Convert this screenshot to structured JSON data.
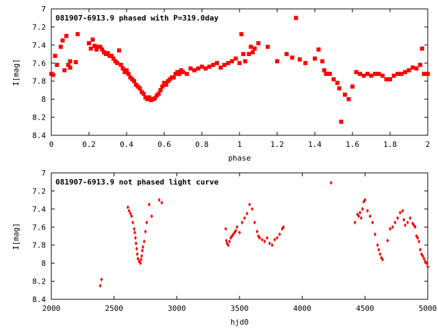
{
  "chart_data": [
    {
      "type": "scatter",
      "title": "081907-6913.9 phased with P=319.0day",
      "xlabel": "phase",
      "ylabel": "I[mag]",
      "xlim": [
        0,
        2
      ],
      "ylim": [
        8.4,
        7
      ],
      "y_inverted": true,
      "xticks": [
        0,
        0.2,
        0.4,
        0.6,
        0.8,
        1,
        1.2,
        1.4,
        1.6,
        1.8,
        2
      ],
      "xtick_labels": [
        "0",
        "0.2",
        "0.4",
        "0.6",
        "0.8",
        "1",
        "1.2",
        "1.4",
        "1.6",
        "1.8",
        "2"
      ],
      "yticks": [
        7,
        7.2,
        7.4,
        7.6,
        7.8,
        8,
        8.2,
        8.4
      ],
      "ytick_labels": [
        "7",
        "7.2",
        "7.4",
        "7.6",
        "7.8",
        "8",
        "8.2",
        "8.4"
      ],
      "marker": "filled-square",
      "color": "#ff0000",
      "series": [
        {
          "name": "phased",
          "x": [
            0.0,
            0.01,
            0.02,
            0.03,
            0.05,
            0.06,
            0.07,
            0.08,
            0.09,
            0.1,
            0.1,
            0.13,
            0.14,
            0.2,
            0.21,
            0.22,
            0.23,
            0.24,
            0.25,
            0.26,
            0.27,
            0.28,
            0.29,
            0.3,
            0.31,
            0.32,
            0.33,
            0.34,
            0.35,
            0.36,
            0.37,
            0.38,
            0.39,
            0.4,
            0.41,
            0.42,
            0.43,
            0.44,
            0.45,
            0.46,
            0.47,
            0.48,
            0.49,
            0.5,
            0.51,
            0.52,
            0.53,
            0.54,
            0.55,
            0.56,
            0.57,
            0.58,
            0.59,
            0.6,
            0.61,
            0.62,
            0.63,
            0.64,
            0.65,
            0.66,
            0.67,
            0.68,
            0.69,
            0.7,
            0.72,
            0.74,
            0.76,
            0.78,
            0.8,
            0.82,
            0.84,
            0.86,
            0.88,
            0.9,
            0.92,
            0.94,
            0.96,
            0.98,
            1.0,
            1.01,
            1.02,
            1.03,
            1.05,
            1.06,
            1.07,
            1.08,
            1.1,
            1.15,
            1.2,
            1.25,
            1.28,
            1.3,
            1.32,
            1.35,
            1.4,
            1.42,
            1.44,
            1.45,
            1.46,
            1.48,
            1.5,
            1.52,
            1.53,
            1.54,
            1.56,
            1.58,
            1.6,
            1.62,
            1.64,
            1.66,
            1.68,
            1.7,
            1.72,
            1.74,
            1.76,
            1.78,
            1.8,
            1.82,
            1.84,
            1.86,
            1.88,
            1.9,
            1.92,
            1.94,
            1.96,
            1.97,
            1.98,
            2.0
          ],
          "y": [
            7.72,
            7.73,
            7.52,
            7.62,
            7.42,
            7.35,
            7.68,
            7.3,
            7.62,
            7.65,
            7.58,
            7.59,
            7.28,
            7.38,
            7.44,
            7.34,
            7.41,
            7.45,
            7.42,
            7.42,
            7.45,
            7.48,
            7.5,
            7.49,
            7.52,
            7.52,
            7.55,
            7.58,
            7.6,
            7.46,
            7.62,
            7.66,
            7.7,
            7.68,
            7.72,
            7.76,
            7.78,
            7.8,
            7.84,
            7.86,
            7.88,
            7.92,
            7.94,
            7.98,
            8.0,
            7.98,
            8.01,
            8.0,
            7.99,
            7.96,
            7.94,
            7.9,
            7.86,
            7.82,
            7.84,
            7.8,
            7.78,
            7.76,
            7.76,
            7.72,
            7.7,
            7.72,
            7.68,
            7.7,
            7.72,
            7.66,
            7.68,
            7.66,
            7.64,
            7.66,
            7.64,
            7.62,
            7.6,
            7.65,
            7.62,
            7.6,
            7.58,
            7.55,
            7.6,
            7.28,
            7.5,
            7.58,
            7.5,
            7.42,
            7.48,
            7.44,
            7.38,
            7.42,
            7.58,
            7.5,
            7.54,
            7.1,
            7.56,
            7.6,
            7.55,
            7.45,
            7.58,
            7.68,
            7.72,
            7.72,
            7.78,
            7.82,
            7.88,
            8.25,
            7.95,
            8.0,
            7.86,
            7.7,
            7.72,
            7.74,
            7.72,
            7.74,
            7.72,
            7.72,
            7.74,
            7.78,
            7.78,
            7.74,
            7.72,
            7.72,
            7.7,
            7.68,
            7.65,
            7.66,
            7.62,
            7.44,
            7.72,
            7.72
          ]
        }
      ]
    },
    {
      "type": "scatter",
      "title": "081907-6913.9 not phased light curve",
      "xlabel": "hjd0",
      "ylabel": "I[mag]",
      "xlim": [
        2000,
        5000
      ],
      "ylim": [
        8.4,
        7
      ],
      "y_inverted": true,
      "xticks": [
        2000,
        2500,
        3000,
        3500,
        4000,
        4500,
        5000
      ],
      "xtick_labels": [
        "2000",
        "2500",
        "3000",
        "3500",
        "4000",
        "4500",
        "5000"
      ],
      "yticks": [
        7,
        7.2,
        7.4,
        7.6,
        7.8,
        8,
        8.2,
        8.4
      ],
      "ytick_labels": [
        "7",
        "7.2",
        "7.4",
        "7.6",
        "7.8",
        "8",
        "8.2",
        "8.4"
      ],
      "marker": "diamond",
      "color": "#ff0000",
      "series": [
        {
          "name": "unphased",
          "x": [
            2390,
            2400,
            2610,
            2620,
            2630,
            2640,
            2650,
            2660,
            2665,
            2670,
            2675,
            2680,
            2685,
            2690,
            2700,
            2710,
            2715,
            2720,
            2725,
            2730,
            2740,
            2750,
            2760,
            2780,
            2800,
            2860,
            2880,
            3390,
            3395,
            3400,
            3410,
            3420,
            3430,
            3440,
            3450,
            3460,
            3470,
            3480,
            3500,
            3520,
            3540,
            3560,
            3580,
            3600,
            3620,
            3640,
            3650,
            3660,
            3680,
            3700,
            3720,
            3740,
            3760,
            3780,
            3800,
            3820,
            3840,
            3850,
            4230,
            4420,
            4440,
            4450,
            4460,
            4470,
            4480,
            4490,
            4500,
            4520,
            4540,
            4560,
            4580,
            4600,
            4610,
            4620,
            4630,
            4640,
            4680,
            4700,
            4720,
            4740,
            4760,
            4780,
            4800,
            4810,
            4820,
            4840,
            4860,
            4880,
            4890,
            4900,
            4910,
            4920,
            4930,
            4940,
            4950,
            4960,
            4970,
            4980,
            4990,
            5000
          ],
          "y": [
            8.25,
            8.18,
            7.38,
            7.42,
            7.45,
            7.48,
            7.55,
            7.62,
            7.66,
            7.72,
            7.78,
            7.84,
            7.9,
            7.95,
            7.98,
            8.0,
            7.96,
            7.92,
            7.86,
            7.82,
            7.76,
            7.65,
            7.55,
            7.35,
            7.48,
            7.3,
            7.33,
            7.62,
            7.75,
            7.78,
            7.8,
            7.76,
            7.72,
            7.7,
            7.68,
            7.66,
            7.64,
            7.6,
            7.66,
            7.55,
            7.5,
            7.45,
            7.35,
            7.4,
            7.55,
            7.65,
            7.7,
            7.72,
            7.74,
            7.76,
            7.72,
            7.78,
            7.8,
            7.74,
            7.72,
            7.68,
            7.62,
            7.6,
            7.11,
            7.55,
            7.46,
            7.48,
            7.44,
            7.5,
            7.4,
            7.32,
            7.3,
            7.42,
            7.48,
            7.55,
            7.68,
            7.8,
            7.85,
            7.9,
            7.94,
            7.96,
            7.75,
            7.62,
            7.6,
            7.55,
            7.5,
            7.44,
            7.42,
            7.52,
            7.58,
            7.55,
            7.5,
            7.56,
            7.58,
            7.6,
            7.7,
            7.72,
            7.76,
            7.85,
            7.9,
            7.92,
            7.95,
            7.98,
            8.0,
            8.04
          ]
        }
      ]
    }
  ]
}
